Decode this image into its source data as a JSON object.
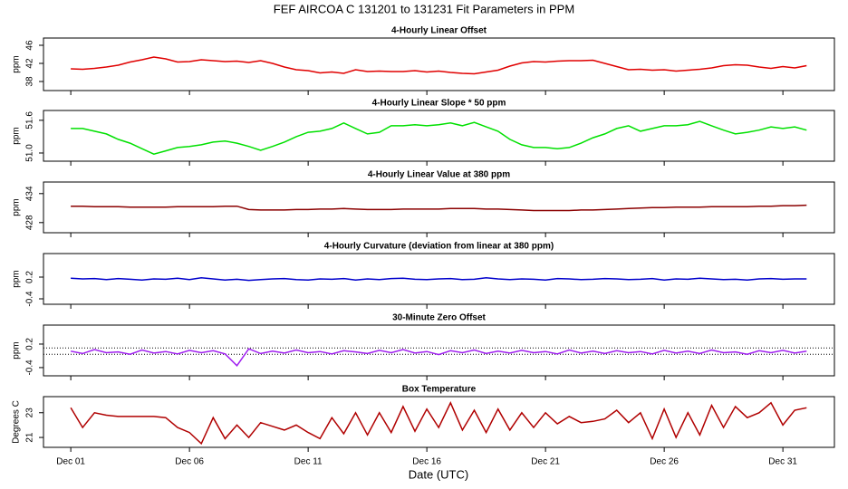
{
  "title": "FEF   AIRCOA C   131201 to 131231   Fit Parameters in PPM",
  "xlabel": "Date (UTC)",
  "chart_data": [
    {
      "type": "line",
      "title": "4-Hourly Linear Offset",
      "ylabel": "ppm",
      "x": [
        1,
        1.5,
        2,
        2.5,
        3,
        3.5,
        4,
        4.5,
        5,
        5.5,
        6,
        6.5,
        7,
        7.5,
        8,
        8.5,
        9,
        9.5,
        10,
        10.5,
        11,
        11.5,
        12,
        12.5,
        13,
        13.5,
        14,
        14.5,
        15,
        15.5,
        16,
        16.5,
        17,
        17.5,
        18,
        18.5,
        19,
        19.5,
        20,
        20.5,
        21,
        21.5,
        22,
        22.5,
        23,
        23.5,
        24,
        24.5,
        25,
        25.5,
        26,
        26.5,
        27,
        27.5,
        28,
        28.5,
        29,
        29.5,
        30,
        30.5,
        31,
        31.5,
        32
      ],
      "series": [
        {
          "color": "#e00000",
          "values": [
            40.8,
            40.7,
            40.9,
            41.2,
            41.6,
            42.3,
            42.8,
            43.4,
            43.0,
            42.3,
            42.4,
            42.8,
            42.6,
            42.4,
            42.5,
            42.2,
            42.6,
            42.0,
            41.2,
            40.6,
            40.4,
            39.9,
            40.1,
            39.8,
            40.6,
            40.2,
            40.3,
            40.2,
            40.2,
            40.4,
            40.1,
            40.3,
            40.0,
            39.8,
            39.7,
            40.1,
            40.5,
            41.4,
            42.1,
            42.4,
            42.3,
            42.5,
            42.6,
            42.6,
            42.7,
            42.0,
            41.3,
            40.6,
            40.7,
            40.5,
            40.6,
            40.3,
            40.5,
            40.7,
            41.0,
            41.5,
            41.7,
            41.6,
            41.2,
            40.9,
            41.3,
            41.0,
            41.5
          ]
        }
      ],
      "xlim": [
        -0.15,
        33.17
      ],
      "ylim": [
        36,
        47.6
      ],
      "yticks": [
        38,
        42,
        46
      ]
    },
    {
      "type": "line",
      "title": "4-Hourly Linear Slope * 50 ppm",
      "ylabel": "ppm",
      "x": [
        1,
        1.5,
        2,
        2.5,
        3,
        3.5,
        4,
        4.5,
        5,
        5.5,
        6,
        6.5,
        7,
        7.5,
        8,
        8.5,
        9,
        9.5,
        10,
        10.5,
        11,
        11.5,
        12,
        12.5,
        13,
        13.5,
        14,
        14.5,
        15,
        15.5,
        16,
        16.5,
        17,
        17.5,
        18,
        18.5,
        19,
        19.5,
        20,
        20.5,
        21,
        21.5,
        22,
        22.5,
        23,
        23.5,
        24,
        24.5,
        25,
        25.5,
        26,
        26.5,
        27,
        27.5,
        28,
        28.5,
        29,
        29.5,
        30,
        30.5,
        31,
        31.5,
        32
      ],
      "series": [
        {
          "color": "#00e000",
          "values": [
            51.45,
            51.45,
            51.4,
            51.35,
            51.25,
            51.18,
            51.08,
            50.98,
            51.04,
            51.1,
            51.12,
            51.15,
            51.2,
            51.22,
            51.18,
            51.12,
            51.05,
            51.12,
            51.2,
            51.3,
            51.38,
            51.4,
            51.45,
            51.55,
            51.45,
            51.35,
            51.38,
            51.5,
            51.5,
            51.52,
            51.5,
            51.52,
            51.55,
            51.5,
            51.56,
            51.48,
            51.4,
            51.25,
            51.15,
            51.1,
            51.1,
            51.08,
            51.1,
            51.18,
            51.28,
            51.35,
            51.45,
            51.5,
            51.4,
            51.45,
            51.5,
            51.5,
            51.52,
            51.58,
            51.5,
            51.42,
            51.35,
            51.38,
            51.42,
            51.48,
            51.45,
            51.48,
            51.42
          ]
        }
      ],
      "xlim": [
        -0.15,
        33.17
      ],
      "ylim": [
        50.85,
        51.78
      ],
      "yticks": [
        {
          "value": 51,
          "label": "51.0"
        },
        51.6
      ]
    },
    {
      "type": "line",
      "title": "4-Hourly Linear Value at 380 ppm",
      "ylabel": "ppm",
      "x": [
        1,
        1.5,
        2,
        2.5,
        3,
        3.5,
        4,
        4.5,
        5,
        5.5,
        6,
        6.5,
        7,
        7.5,
        8,
        8.5,
        9,
        9.5,
        10,
        10.5,
        11,
        11.5,
        12,
        12.5,
        13,
        13.5,
        14,
        14.5,
        15,
        15.5,
        16,
        16.5,
        17,
        17.5,
        18,
        18.5,
        19,
        19.5,
        20,
        20.5,
        21,
        21.5,
        22,
        22.5,
        23,
        23.5,
        24,
        24.5,
        25,
        25.5,
        26,
        26.5,
        27,
        27.5,
        28,
        28.5,
        29,
        29.5,
        30,
        30.5,
        31,
        31.5,
        32
      ],
      "series": [
        {
          "color": "#8b0000",
          "values": [
            431.4,
            431.4,
            431.3,
            431.3,
            431.3,
            431.2,
            431.2,
            431.2,
            431.2,
            431.3,
            431.3,
            431.3,
            431.3,
            431.4,
            431.4,
            430.7,
            430.6,
            430.6,
            430.6,
            430.7,
            430.7,
            430.8,
            430.8,
            430.9,
            430.8,
            430.7,
            430.7,
            430.7,
            430.8,
            430.8,
            430.8,
            430.8,
            430.9,
            430.9,
            430.9,
            430.8,
            430.8,
            430.7,
            430.6,
            430.5,
            430.5,
            430.5,
            430.5,
            430.6,
            430.6,
            430.7,
            430.8,
            430.9,
            431.0,
            431.1,
            431.1,
            431.2,
            431.2,
            431.2,
            431.3,
            431.3,
            431.3,
            431.3,
            431.4,
            431.4,
            431.5,
            431.5,
            431.6
          ]
        }
      ],
      "xlim": [
        -0.15,
        33.17
      ],
      "ylim": [
        425.9,
        436.4
      ],
      "yticks": [
        428,
        434
      ]
    },
    {
      "type": "line",
      "title": "4-Hourly Curvature (deviation from linear at 380 ppm)",
      "ylabel": "ppm",
      "x": [
        1,
        1.5,
        2,
        2.5,
        3,
        3.5,
        4,
        4.5,
        5,
        5.5,
        6,
        6.5,
        7,
        7.5,
        8,
        8.5,
        9,
        9.5,
        10,
        10.5,
        11,
        11.5,
        12,
        12.5,
        13,
        13.5,
        14,
        14.5,
        15,
        15.5,
        16,
        16.5,
        17,
        17.5,
        18,
        18.5,
        19,
        19.5,
        20,
        20.5,
        21,
        21.5,
        22,
        22.5,
        23,
        23.5,
        24,
        24.5,
        25,
        25.5,
        26,
        26.5,
        27,
        27.5,
        28,
        28.5,
        29,
        29.5,
        30,
        30.5,
        31,
        31.5,
        32
      ],
      "series": [
        {
          "color": "#0000cc",
          "values": [
            0.17,
            0.15,
            0.16,
            0.13,
            0.16,
            0.14,
            0.12,
            0.15,
            0.14,
            0.17,
            0.13,
            0.18,
            0.15,
            0.12,
            0.14,
            0.11,
            0.13,
            0.15,
            0.16,
            0.13,
            0.12,
            0.15,
            0.14,
            0.16,
            0.12,
            0.15,
            0.13,
            0.16,
            0.17,
            0.14,
            0.13,
            0.15,
            0.16,
            0.13,
            0.14,
            0.18,
            0.15,
            0.13,
            0.15,
            0.14,
            0.12,
            0.16,
            0.15,
            0.13,
            0.14,
            0.16,
            0.15,
            0.13,
            0.14,
            0.16,
            0.12,
            0.15,
            0.14,
            0.17,
            0.15,
            0.13,
            0.14,
            0.12,
            0.15,
            0.16,
            0.14,
            0.15,
            0.15
          ]
        }
      ],
      "xlim": [
        -0.15,
        33.17
      ],
      "ylim": [
        -0.55,
        0.85
      ],
      "yticks": [
        -0.4,
        0.2
      ]
    },
    {
      "type": "line",
      "title": "30-Minute Zero Offset",
      "ylabel": "ppm",
      "x": [
        1,
        1.5,
        2,
        2.5,
        3,
        3.5,
        4,
        4.5,
        5,
        5.5,
        6,
        6.5,
        7,
        7.5,
        8,
        8.5,
        9,
        9.5,
        10,
        10.5,
        11,
        11.5,
        12,
        12.5,
        13,
        13.5,
        14,
        14.5,
        15,
        15.5,
        16,
        16.5,
        17,
        17.5,
        18,
        18.5,
        19,
        19.5,
        20,
        20.5,
        21,
        21.5,
        22,
        22.5,
        23,
        23.5,
        24,
        24.5,
        25,
        25.5,
        26,
        26.5,
        27,
        27.5,
        28,
        28.5,
        29,
        29.5,
        30,
        30.5,
        31,
        31.5,
        32
      ],
      "series": [
        {
          "color": "#a020f0",
          "values": [
            0.02,
            -0.04,
            0.06,
            -0.02,
            0.0,
            -0.06,
            0.05,
            -0.03,
            0.01,
            -0.05,
            0.04,
            -0.02,
            0.03,
            -0.05,
            -0.35,
            0.08,
            -0.04,
            0.02,
            -0.03,
            0.05,
            -0.02,
            0.01,
            -0.05,
            0.03,
            0.0,
            -0.04,
            0.04,
            -0.02,
            0.06,
            -0.03,
            0.01,
            -0.07,
            0.03,
            -0.02,
            0.05,
            -0.04,
            0.02,
            -0.03,
            0.04,
            -0.02,
            0.01,
            -0.05,
            0.05,
            -0.03,
            0.02,
            -0.04,
            0.03,
            -0.02,
            0.01,
            -0.05,
            0.04,
            -0.03,
            0.02,
            -0.04,
            0.05,
            -0.02,
            0.0,
            -0.06,
            0.03,
            -0.02,
            0.04,
            -0.03,
            0.02
          ]
        }
      ],
      "hlines": [
        0.1,
        -0.06
      ],
      "xlim": [
        -0.15,
        33.17
      ],
      "ylim": [
        -0.61,
        0.685
      ],
      "yticks": [
        -0.4,
        0.2
      ]
    },
    {
      "type": "line",
      "title": "Box Temperature",
      "ylabel": "Degrees C",
      "x": [
        1,
        1.5,
        2,
        2.5,
        3,
        3.5,
        4,
        4.5,
        5,
        5.5,
        6,
        6.5,
        7,
        7.5,
        8,
        8.5,
        9,
        9.5,
        10,
        10.5,
        11,
        11.5,
        12,
        12.5,
        13,
        13.5,
        14,
        14.5,
        15,
        15.5,
        16,
        16.5,
        17,
        17.5,
        18,
        18.5,
        19,
        19.5,
        20,
        20.5,
        21,
        21.5,
        22,
        22.5,
        23,
        23.5,
        24,
        24.5,
        25,
        25.5,
        26,
        26.5,
        27,
        27.5,
        28,
        28.5,
        29,
        29.5,
        30,
        30.5,
        31,
        31.5,
        32
      ],
      "series": [
        {
          "color": "#b00000",
          "values": [
            23.4,
            21.8,
            23.0,
            22.8,
            22.7,
            22.7,
            22.7,
            22.7,
            22.6,
            21.8,
            21.4,
            20.5,
            22.6,
            20.9,
            22.0,
            21.0,
            22.2,
            21.9,
            21.6,
            22.0,
            21.4,
            20.9,
            22.6,
            21.3,
            23.0,
            21.2,
            23.0,
            21.4,
            23.5,
            21.5,
            23.3,
            21.8,
            23.8,
            21.6,
            23.2,
            21.4,
            23.3,
            21.6,
            23.0,
            21.8,
            23.0,
            22.1,
            22.7,
            22.2,
            22.3,
            22.5,
            23.2,
            22.2,
            23.0,
            20.9,
            23.3,
            21.0,
            23.0,
            21.2,
            23.6,
            21.8,
            23.5,
            22.6,
            23.0,
            23.8,
            22.0,
            23.2,
            23.4
          ]
        }
      ],
      "xlim": [
        -0.15,
        33.17
      ],
      "ylim": [
        20.2,
        24.3
      ],
      "yticks": [
        21,
        23
      ],
      "xticks": [
        {
          "value": 1,
          "label": "Dec 01"
        },
        {
          "value": 6,
          "label": "Dec 06"
        },
        {
          "value": 11,
          "label": "Dec 11"
        },
        {
          "value": 16,
          "label": "Dec 16"
        },
        {
          "value": 21,
          "label": "Dec 21"
        },
        {
          "value": 26,
          "label": "Dec 26"
        },
        {
          "value": 31,
          "label": "Dec 31"
        }
      ]
    }
  ]
}
